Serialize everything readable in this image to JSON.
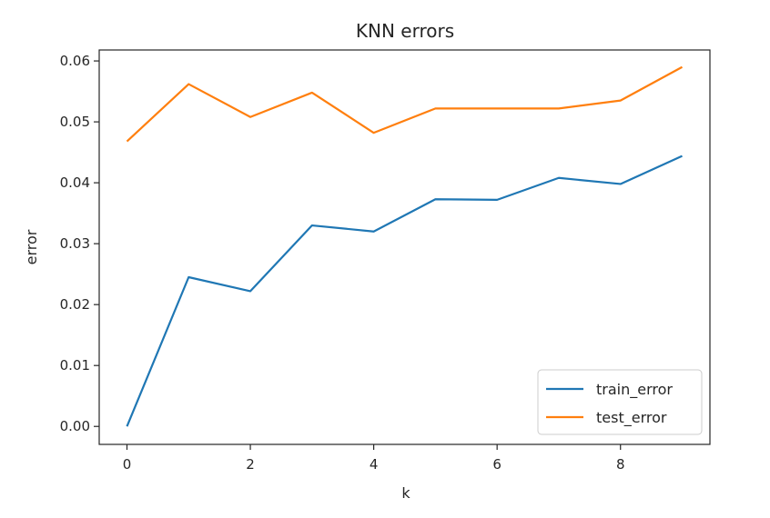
{
  "chart_data": {
    "type": "line",
    "title": "KNN errors",
    "xlabel": "k",
    "ylabel": "error",
    "x": [
      0,
      1,
      2,
      3,
      4,
      5,
      6,
      7,
      8,
      9
    ],
    "xlim": [
      -0.45,
      9.45
    ],
    "ylim": [
      -0.00295,
      0.0618
    ],
    "xticks": [
      0,
      2,
      4,
      6,
      8
    ],
    "yticks": [
      0.0,
      0.01,
      0.02,
      0.03,
      0.04,
      0.05,
      0.06
    ],
    "ytick_labels": [
      "0.00",
      "0.01",
      "0.02",
      "0.03",
      "0.04",
      "0.05",
      "0.06"
    ],
    "grid": false,
    "legend_position": "lower-right",
    "series": [
      {
        "name": "train_error",
        "color": "#1f77b4",
        "values": [
          0.0,
          0.0245,
          0.0222,
          0.033,
          0.032,
          0.0373,
          0.0372,
          0.0408,
          0.0398,
          0.0444
        ]
      },
      {
        "name": "test_error",
        "color": "#ff7f0e",
        "values": [
          0.0468,
          0.0562,
          0.0508,
          0.0548,
          0.0482,
          0.0522,
          0.0522,
          0.0522,
          0.0535,
          0.059
        ]
      }
    ]
  }
}
